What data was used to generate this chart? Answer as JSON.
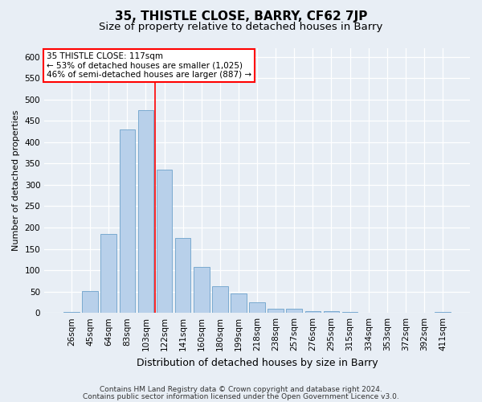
{
  "title": "35, THISTLE CLOSE, BARRY, CF62 7JP",
  "subtitle": "Size of property relative to detached houses in Barry",
  "xlabel": "Distribution of detached houses by size in Barry",
  "ylabel": "Number of detached properties",
  "categories": [
    "26sqm",
    "45sqm",
    "64sqm",
    "83sqm",
    "103sqm",
    "122sqm",
    "141sqm",
    "160sqm",
    "180sqm",
    "199sqm",
    "218sqm",
    "238sqm",
    "257sqm",
    "276sqm",
    "295sqm",
    "315sqm",
    "334sqm",
    "353sqm",
    "372sqm",
    "392sqm",
    "411sqm"
  ],
  "values": [
    3,
    52,
    185,
    430,
    475,
    335,
    175,
    107,
    62,
    46,
    25,
    10,
    9,
    5,
    4,
    3,
    1,
    1,
    1,
    1,
    2
  ],
  "bar_color": "#b8d0ea",
  "bar_edge_color": "#7aaad0",
  "vline_x": 4.5,
  "vline_color": "red",
  "box_text_line1": "35 THISTLE CLOSE: 117sqm",
  "box_text_line2": "← 53% of detached houses are smaller (1,025)",
  "box_text_line3": "46% of semi-detached houses are larger (887) →",
  "box_color": "white",
  "box_edge_color": "red",
  "ylim": [
    0,
    620
  ],
  "yticks": [
    0,
    50,
    100,
    150,
    200,
    250,
    300,
    350,
    400,
    450,
    500,
    550,
    600
  ],
  "footnote_line1": "Contains HM Land Registry data © Crown copyright and database right 2024.",
  "footnote_line2": "Contains public sector information licensed under the Open Government Licence v3.0.",
  "background_color": "#e8eef5",
  "plot_background_color": "#e8eef5",
  "title_fontsize": 11,
  "subtitle_fontsize": 9.5,
  "xlabel_fontsize": 9,
  "ylabel_fontsize": 8,
  "tick_fontsize": 7.5,
  "footnote_fontsize": 6.5
}
